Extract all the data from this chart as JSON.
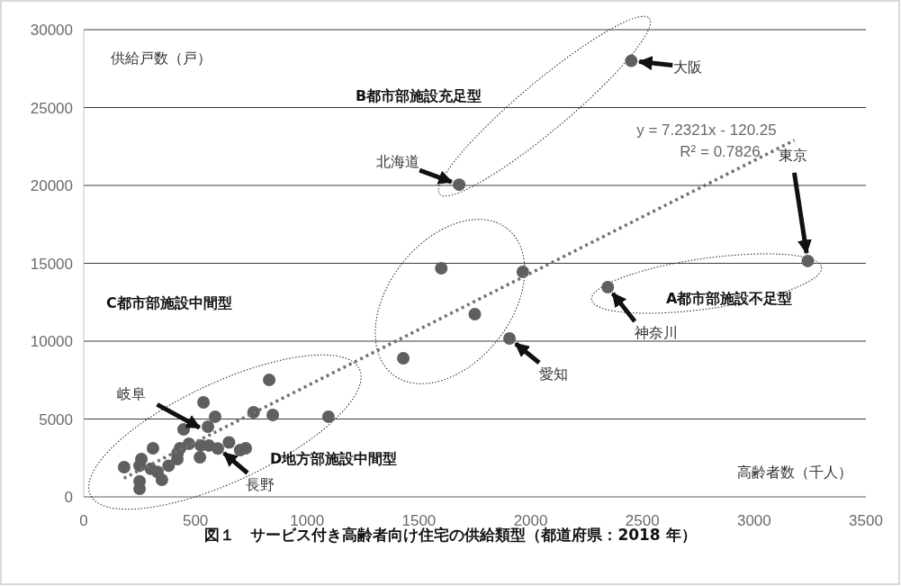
{
  "chart_data": {
    "type": "scatter",
    "title": "図１　サービス付き高齢者向け住宅の供給類型（都道府県：2018 年）",
    "xlabel": "高齢者数（千人）",
    "ylabel": "供給戸数（戸）",
    "xlim": [
      0,
      3500
    ],
    "xticks": [
      0,
      500,
      1000,
      1500,
      2000,
      2500,
      3000,
      3500
    ],
    "ylim": [
      0,
      30000
    ],
    "yticks": [
      0,
      5000,
      10000,
      15000,
      20000,
      25000,
      30000
    ],
    "grid": "y",
    "marker": "circle",
    "series": [
      {
        "color": "#5f5f5f",
        "x": [
          2450,
          1680,
          1600,
          1965,
          1750,
          1905,
          1430,
          2345,
          3240,
          830,
          1095,
          846,
          760,
          536,
          588,
          556,
          447,
          725,
          524,
          520,
          471,
          431,
          310,
          258,
          181,
          250,
          350,
          419,
          250,
          250,
          330,
          380,
          420,
          650,
          300,
          560,
          600,
          700
        ],
        "values": [
          28000,
          20050,
          14680,
          14450,
          11730,
          10170,
          8900,
          13470,
          15150,
          7510,
          5150,
          5260,
          5430,
          6070,
          5150,
          4510,
          4330,
          3120,
          3300,
          2540,
          3410,
          3120,
          3120,
          2430,
          1910,
          520,
          1100,
          2430,
          1000,
          2000,
          1600,
          2000,
          2800,
          3500,
          1800,
          3300,
          3100,
          3000
        ]
      },
      {
        "type": "line",
        "color": "#707070",
        "line_style": "dotted",
        "marker": "none",
        "x": [
          180,
          3180
        ],
        "values": [
          1200,
          22900
        ]
      }
    ],
    "annotations": [
      {
        "text": "大阪",
        "x": 2450,
        "y": 28000
      },
      {
        "text": "北海道",
        "x": 1680,
        "y": 20050
      },
      {
        "text": "東京",
        "x": 3240,
        "y": 15150
      },
      {
        "text": "神奈川",
        "x": 2345,
        "y": 13470
      },
      {
        "text": "愛知",
        "x": 1905,
        "y": 10170
      },
      {
        "text": "岐阜",
        "x": 550,
        "y": 4200
      },
      {
        "text": "長野",
        "x": 600,
        "y": 3150
      },
      "B都市部施設充足型",
      "C都市部施設中間型",
      "A都市部施設不足型",
      "D地方部施設中間型",
      "y = 7.2321x - 120.25",
      "R² = 0.7826"
    ]
  }
}
